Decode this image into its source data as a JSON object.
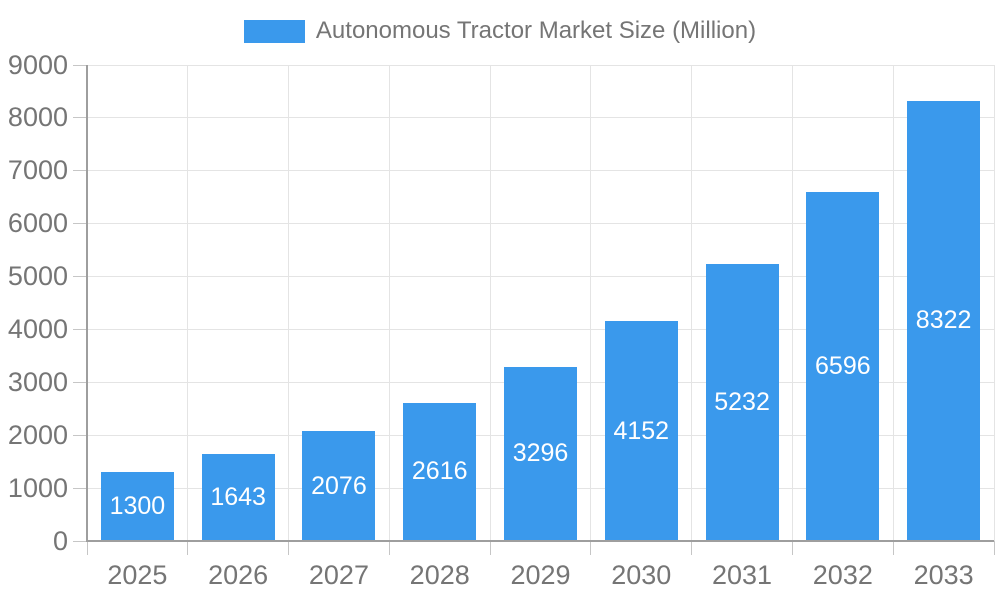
{
  "legend": {
    "label": "Autonomous Tractor Market Size (Million)"
  },
  "chart_data": {
    "type": "bar",
    "title": "Autonomous Tractor Market Size (Million)",
    "categories": [
      "2025",
      "2026",
      "2027",
      "2028",
      "2029",
      "2030",
      "2031",
      "2032",
      "2033"
    ],
    "series": [
      {
        "name": "Autonomous Tractor Market Size (Million)",
        "values": [
          1300,
          1643,
          2076,
          2616,
          3296,
          4152,
          5232,
          6596,
          8322
        ]
      }
    ],
    "value_labels_shown": true,
    "value_label_position": "inside-center",
    "xlabel": "",
    "ylabel": "",
    "ylim": [
      0,
      9000
    ],
    "ytick_step": 1000,
    "grid": true,
    "legend_position": "top-center"
  },
  "colors": {
    "bar": "#3A99EC",
    "value_label": "#ffffff",
    "axis_label": "#757575",
    "axis_line": "#9e9e9e",
    "tick": "#c6c6c6",
    "gridline": "#e4e4e4",
    "background": "#ffffff"
  }
}
